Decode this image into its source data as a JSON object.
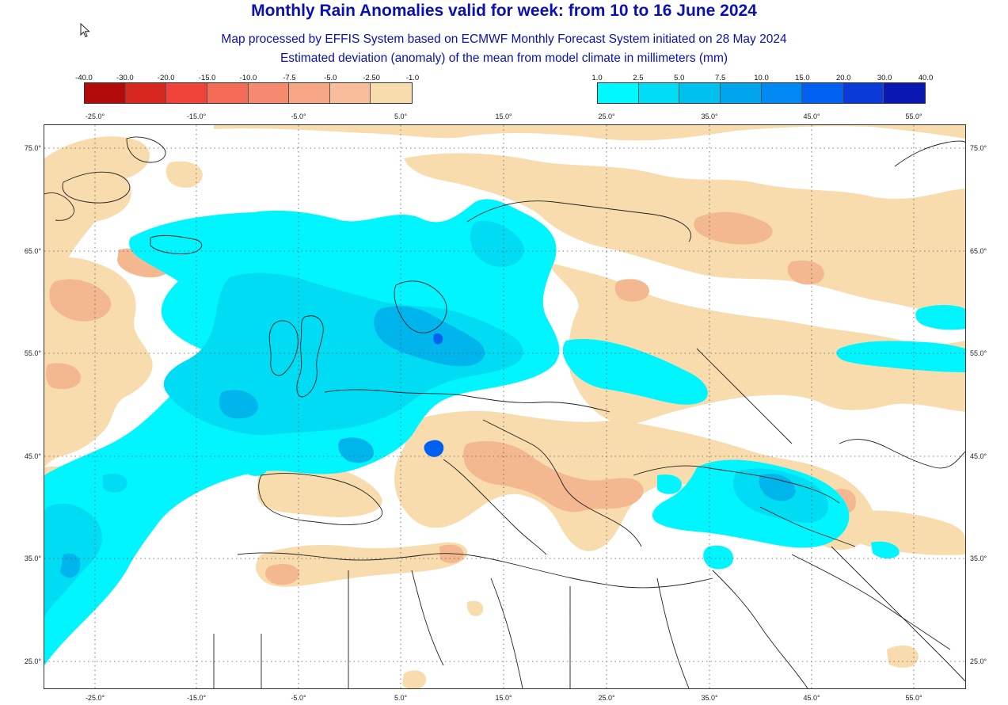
{
  "header": {
    "title": "Monthly Rain Anomalies valid for week: from 10 to 16 June 2024",
    "subtitle": "Map processed by EFFIS System based on ECMWF Monthly Forecast System initiated on 28 May 2024",
    "description": "Estimated deviation (anomaly) of the mean from model climate in millimeters (mm)"
  },
  "legend_negative": {
    "labels": [
      "-40.0",
      "-30.0",
      "-20.0",
      "-15.0",
      "-10.0",
      "-7.5",
      "-5.0",
      "-2.50",
      "-1.0"
    ],
    "colors": [
      "#b30a0a",
      "#d8271f",
      "#f0443a",
      "#f46b57",
      "#f68a6f",
      "#f7a685",
      "#f9bd9b",
      "#f8dcae"
    ]
  },
  "legend_positive": {
    "labels": [
      "1.0",
      "2.5",
      "5.0",
      "7.5",
      "10.0",
      "15.0",
      "20.0",
      "30.0",
      "40.0"
    ],
    "colors": [
      "#00f8ff",
      "#00ddf4",
      "#00c0ee",
      "#00a5ee",
      "#0089f2",
      "#0060f0",
      "#0a3ad8",
      "#0818b0"
    ]
  },
  "map": {
    "lon_labels": [
      "-25.0°",
      "-15.0°",
      "-5.0°",
      "5.0°",
      "15.0°",
      "25.0°",
      "35.0°",
      "45.0°",
      "55.0°"
    ],
    "lat_labels": [
      "75.0°",
      "65.0°",
      "55.0°",
      "45.0°",
      "35.0°",
      "25.0°"
    ],
    "gridlines": "dotted",
    "palette": {
      "dry_light": "#f8dcae",
      "dry_mid": "#f4b890",
      "dry_strong": "#ee9478",
      "wet_light": "#00f5ff",
      "wet_mid": "#00dcf4",
      "wet_strong": "#00b5ec",
      "wet_deep": "#0060f0",
      "borders": "#222222",
      "gridline": "#555555"
    }
  }
}
